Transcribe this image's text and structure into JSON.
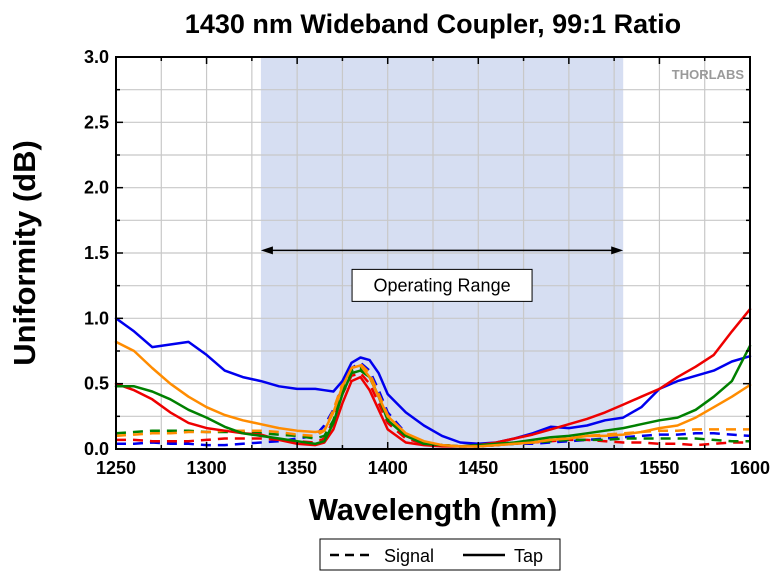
{
  "chart_data": {
    "type": "line",
    "title": "1430 nm Wideband Coupler, 99:1 Ratio",
    "xlabel": "Wavelength (nm)",
    "ylabel": "Uniformity (dB)",
    "xlim": [
      1250,
      1600
    ],
    "ylim": [
      0,
      3.0
    ],
    "xticks": [
      1250,
      1300,
      1350,
      1400,
      1450,
      1500,
      1550,
      1600
    ],
    "xtick_labels": [
      "1250",
      "1300",
      "1350",
      "1400",
      "1450",
      "1500",
      "1550",
      "1600"
    ],
    "yticks": [
      0,
      0.5,
      1.0,
      1.5,
      2.0,
      2.5,
      3.0
    ],
    "ytick_labels": [
      "0.0",
      "0.5",
      "1.0",
      "1.5",
      "2.0",
      "2.5",
      "3.0"
    ],
    "grid": true,
    "shaded_region": {
      "x": [
        1330,
        1530
      ],
      "color": "#d6def2"
    },
    "annotation": {
      "text": "Operating Range",
      "arrow_x": [
        1330,
        1530
      ],
      "arrow_y": 1.52
    },
    "logo_text": "THORLABS",
    "legend": {
      "placement": "bottom-center",
      "entries": [
        {
          "label": "Signal",
          "style": "dashed"
        },
        {
          "label": "Tap",
          "style": "solid"
        }
      ]
    },
    "x": [
      1250,
      1260,
      1270,
      1280,
      1290,
      1300,
      1310,
      1320,
      1330,
      1340,
      1350,
      1360,
      1365,
      1370,
      1375,
      1380,
      1385,
      1390,
      1395,
      1400,
      1410,
      1420,
      1430,
      1440,
      1450,
      1460,
      1470,
      1480,
      1490,
      1500,
      1510,
      1520,
      1530,
      1540,
      1550,
      1560,
      1570,
      1580,
      1590,
      1600
    ],
    "series": [
      {
        "kind": "tap",
        "color": "#0000ee",
        "style": "solid",
        "values": [
          1.0,
          0.9,
          0.78,
          0.8,
          0.82,
          0.72,
          0.6,
          0.55,
          0.52,
          0.48,
          0.46,
          0.46,
          0.45,
          0.44,
          0.52,
          0.66,
          0.7,
          0.68,
          0.58,
          0.42,
          0.28,
          0.18,
          0.1,
          0.05,
          0.04,
          0.05,
          0.08,
          0.12,
          0.17,
          0.16,
          0.18,
          0.22,
          0.24,
          0.32,
          0.46,
          0.52,
          0.56,
          0.6,
          0.67,
          0.71
        ]
      },
      {
        "kind": "tap",
        "color": "#ee0000",
        "style": "solid",
        "values": [
          0.5,
          0.45,
          0.38,
          0.28,
          0.2,
          0.16,
          0.14,
          0.12,
          0.11,
          0.07,
          0.04,
          0.03,
          0.05,
          0.15,
          0.35,
          0.52,
          0.55,
          0.45,
          0.3,
          0.15,
          0.05,
          0.03,
          0.02,
          0.02,
          0.03,
          0.05,
          0.08,
          0.11,
          0.15,
          0.19,
          0.23,
          0.28,
          0.34,
          0.4,
          0.46,
          0.55,
          0.63,
          0.72,
          0.9,
          1.07
        ]
      },
      {
        "kind": "tap",
        "color": "#008000",
        "style": "solid",
        "values": [
          0.48,
          0.48,
          0.44,
          0.38,
          0.3,
          0.24,
          0.17,
          0.12,
          0.1,
          0.08,
          0.06,
          0.04,
          0.06,
          0.2,
          0.42,
          0.58,
          0.6,
          0.55,
          0.4,
          0.22,
          0.1,
          0.04,
          0.03,
          0.02,
          0.03,
          0.04,
          0.05,
          0.07,
          0.09,
          0.1,
          0.12,
          0.14,
          0.16,
          0.19,
          0.22,
          0.24,
          0.3,
          0.4,
          0.52,
          0.79
        ]
      },
      {
        "kind": "tap",
        "color": "#ff8c00",
        "style": "solid",
        "values": [
          0.82,
          0.75,
          0.62,
          0.5,
          0.4,
          0.32,
          0.26,
          0.22,
          0.19,
          0.16,
          0.14,
          0.13,
          0.14,
          0.28,
          0.48,
          0.62,
          0.64,
          0.55,
          0.4,
          0.25,
          0.12,
          0.06,
          0.03,
          0.02,
          0.02,
          0.03,
          0.04,
          0.05,
          0.07,
          0.08,
          0.1,
          0.1,
          0.11,
          0.13,
          0.16,
          0.18,
          0.24,
          0.32,
          0.4,
          0.49
        ]
      },
      {
        "kind": "signal",
        "color": "#0000ee",
        "style": "dashed",
        "values": [
          0.04,
          0.04,
          0.05,
          0.04,
          0.04,
          0.03,
          0.03,
          0.04,
          0.05,
          0.06,
          0.08,
          0.1,
          0.18,
          0.3,
          0.48,
          0.62,
          0.66,
          0.6,
          0.45,
          0.28,
          0.12,
          0.05,
          0.03,
          0.02,
          0.02,
          0.03,
          0.04,
          0.04,
          0.05,
          0.06,
          0.07,
          0.08,
          0.09,
          0.1,
          0.11,
          0.11,
          0.12,
          0.12,
          0.11,
          0.1
        ]
      },
      {
        "kind": "signal",
        "color": "#ee0000",
        "style": "dashed",
        "values": [
          0.07,
          0.07,
          0.06,
          0.06,
          0.06,
          0.07,
          0.08,
          0.08,
          0.08,
          0.07,
          0.06,
          0.05,
          0.08,
          0.22,
          0.42,
          0.56,
          0.58,
          0.5,
          0.35,
          0.2,
          0.08,
          0.04,
          0.03,
          0.02,
          0.02,
          0.03,
          0.04,
          0.05,
          0.06,
          0.07,
          0.07,
          0.06,
          0.05,
          0.05,
          0.04,
          0.04,
          0.03,
          0.04,
          0.05,
          0.05
        ]
      },
      {
        "kind": "signal",
        "color": "#008000",
        "style": "dashed",
        "values": [
          0.12,
          0.13,
          0.14,
          0.14,
          0.14,
          0.13,
          0.13,
          0.13,
          0.12,
          0.11,
          0.1,
          0.08,
          0.1,
          0.22,
          0.44,
          0.6,
          0.62,
          0.55,
          0.4,
          0.24,
          0.1,
          0.05,
          0.03,
          0.02,
          0.02,
          0.03,
          0.04,
          0.05,
          0.06,
          0.07,
          0.07,
          0.07,
          0.08,
          0.08,
          0.08,
          0.08,
          0.08,
          0.07,
          0.06,
          0.06
        ]
      },
      {
        "kind": "signal",
        "color": "#ff8c00",
        "style": "dashed",
        "values": [
          0.1,
          0.11,
          0.12,
          0.12,
          0.13,
          0.13,
          0.14,
          0.14,
          0.14,
          0.13,
          0.11,
          0.1,
          0.14,
          0.3,
          0.5,
          0.62,
          0.65,
          0.58,
          0.42,
          0.26,
          0.1,
          0.05,
          0.03,
          0.02,
          0.02,
          0.03,
          0.05,
          0.06,
          0.08,
          0.09,
          0.1,
          0.11,
          0.12,
          0.13,
          0.14,
          0.14,
          0.15,
          0.15,
          0.15,
          0.15
        ]
      }
    ]
  }
}
